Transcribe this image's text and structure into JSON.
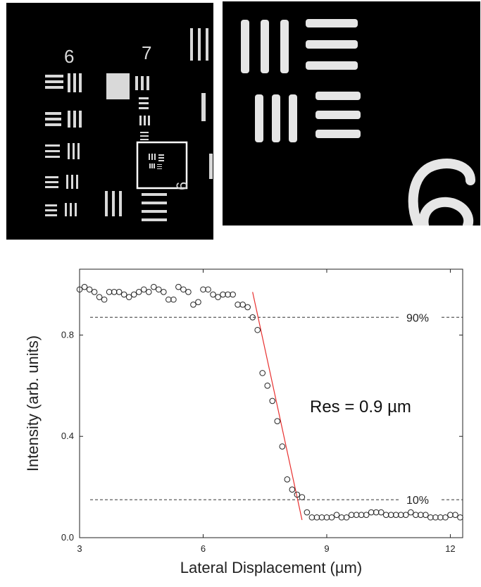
{
  "micrograph_left": {
    "group_labels": [
      "6",
      "7",
      "6"
    ]
  },
  "micrograph_right": {
    "group_label": "6"
  },
  "chart_data": {
    "type": "scatter",
    "xlabel": "Lateral Displacement (µm)",
    "ylabel": "Intensity (arb. units)",
    "xlim": [
      3,
      12.3
    ],
    "ylim": [
      0.0,
      1.06
    ],
    "x_ticks": [
      3,
      6,
      9,
      12
    ],
    "y_ticks": [
      0.0,
      0.4,
      0.8
    ],
    "x_tick_labels": [
      "3",
      "6",
      "9",
      "12"
    ],
    "y_tick_labels": [
      "0.0",
      "0.4",
      "0.8"
    ],
    "grid": false,
    "series": [
      {
        "x": [
          3.0,
          3.12,
          3.24,
          3.36,
          3.48,
          3.6,
          3.72,
          3.84,
          3.96,
          4.08,
          4.2,
          4.32,
          4.44,
          4.56,
          4.68,
          4.8,
          4.92,
          5.04,
          5.16,
          5.28,
          5.4,
          5.52,
          5.64,
          5.76,
          5.88,
          6.0,
          6.12,
          6.24,
          6.36,
          6.48,
          6.6,
          6.72,
          6.84,
          6.96,
          7.08,
          7.2,
          7.32,
          7.44,
          7.56,
          7.68,
          7.8,
          7.92,
          8.04,
          8.16,
          8.28,
          8.4,
          8.52,
          8.64,
          8.76,
          8.88,
          9.0,
          9.12,
          9.24,
          9.36,
          9.48,
          9.6,
          9.72,
          9.84,
          9.96,
          10.08,
          10.2,
          10.32,
          10.44,
          10.56,
          10.68,
          10.8,
          10.92,
          11.04,
          11.16,
          11.28,
          11.4,
          11.52,
          11.64,
          11.76,
          11.88,
          12.0,
          12.12,
          12.24
        ],
        "y": [
          0.98,
          0.99,
          0.98,
          0.97,
          0.95,
          0.94,
          0.97,
          0.97,
          0.97,
          0.96,
          0.95,
          0.96,
          0.97,
          0.98,
          0.97,
          0.99,
          0.98,
          0.97,
          0.94,
          0.94,
          0.99,
          0.98,
          0.97,
          0.92,
          0.93,
          0.98,
          0.98,
          0.96,
          0.95,
          0.96,
          0.96,
          0.96,
          0.92,
          0.92,
          0.91,
          0.87,
          0.82,
          0.65,
          0.6,
          0.54,
          0.46,
          0.36,
          0.23,
          0.19,
          0.17,
          0.16,
          0.1,
          0.08,
          0.08,
          0.08,
          0.08,
          0.08,
          0.09,
          0.08,
          0.08,
          0.09,
          0.09,
          0.09,
          0.09,
          0.1,
          0.1,
          0.1,
          0.09,
          0.09,
          0.09,
          0.09,
          0.09,
          0.1,
          0.09,
          0.09,
          0.09,
          0.08,
          0.08,
          0.08,
          0.08,
          0.09,
          0.09,
          0.08
        ]
      }
    ],
    "fit_line": {
      "x": [
        7.2,
        8.4
      ],
      "y": [
        0.97,
        0.07
      ],
      "color": "#e8302f"
    },
    "reference_lines": [
      {
        "y": 0.87,
        "label": "90%"
      },
      {
        "y": 0.15,
        "label": "10%"
      }
    ],
    "annotation": "Res = 0.9 µm"
  }
}
